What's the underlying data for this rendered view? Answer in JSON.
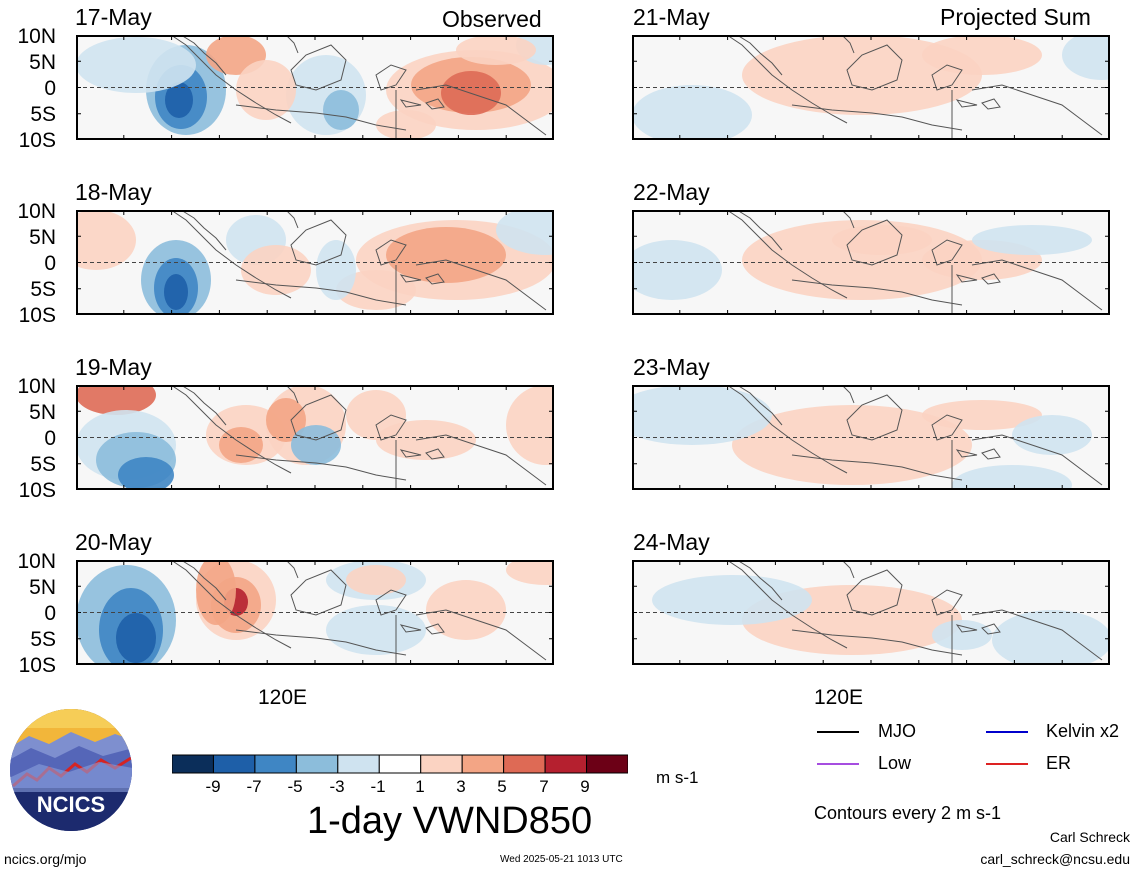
{
  "headers": {
    "left": "Observed",
    "right": "Projected Sum"
  },
  "lat_labels": [
    "10N",
    "5N",
    "0",
    "5S",
    "10S"
  ],
  "lon_label": "120E",
  "panels": [
    {
      "date": "17-May",
      "group": "observed"
    },
    {
      "date": "18-May",
      "group": "observed"
    },
    {
      "date": "19-May",
      "group": "observed"
    },
    {
      "date": "20-May",
      "group": "observed"
    },
    {
      "date": "21-May",
      "group": "projected"
    },
    {
      "date": "22-May",
      "group": "projected"
    },
    {
      "date": "23-May",
      "group": "projected"
    },
    {
      "date": "24-May",
      "group": "projected"
    }
  ],
  "colorbar": {
    "labels": [
      "-9",
      "-7",
      "-5",
      "-3",
      "-1",
      "1",
      "3",
      "5",
      "7",
      "9"
    ],
    "colors": [
      "#0b2e5a",
      "#1e5fa8",
      "#3f86c4",
      "#8cbddb",
      "#cfe3f0",
      "#ffffff",
      "#fbd3c2",
      "#f3a585",
      "#de6a55",
      "#b5202f",
      "#6c0016"
    ],
    "units": "m s-1"
  },
  "title": "1-day VWND850",
  "logo": {
    "text": "NCICS"
  },
  "legend": {
    "items": [
      {
        "label": "MJO",
        "color": "#000000"
      },
      {
        "label": "Kelvin x2",
        "color": "#0000cc"
      },
      {
        "label": "Low",
        "color": "#a64de0"
      },
      {
        "label": "ER",
        "color": "#dd2222"
      }
    ],
    "contours": "Contours every 2 m s-1"
  },
  "footer": {
    "url": "ncics.org/mjo",
    "timestamp": "Wed 2025-05-21 1013 UTC",
    "author": "Carl Schreck",
    "email": "carl_schreck@ncsu.edu"
  }
}
